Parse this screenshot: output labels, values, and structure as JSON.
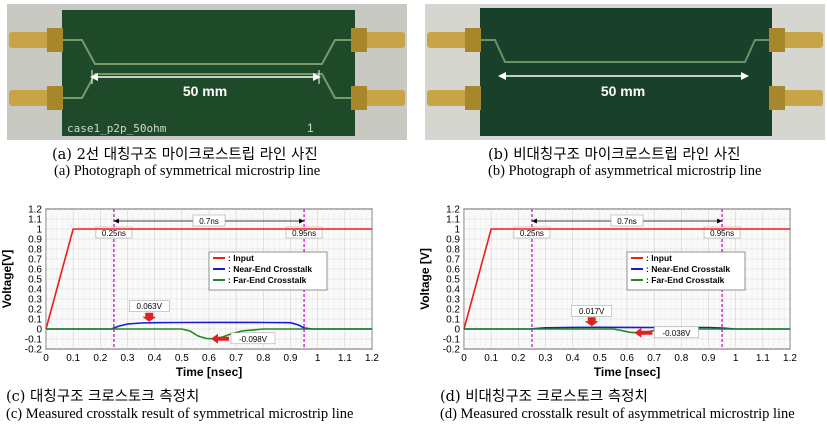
{
  "photo_a": {
    "dimension_label": "50 mm",
    "board_label": "case1_p2p_50ohm",
    "ruler_label": "1"
  },
  "photo_b": {
    "dimension_label": "50 mm"
  },
  "captions": {
    "a_ko": "(a) 2선 대칭구조 마이크로스트립 라인 사진",
    "a_en": "(a) Photograph of symmetrical microstrip line",
    "b_ko": "(b) 비대칭구조 마이크로스트립 라인 사진",
    "b_en": "(b) Photograph of asymmetrical microstrip line",
    "c_ko": "(c) 대칭구조 크로스토크 측정치",
    "c_en": "(c) Measured crosstalk result of symmetrical microstrip line",
    "d_ko": "(d) 비대칭구조 크로스토크 측정치",
    "d_en": "(d) Measured crosstalk result of asymmetrical microstrip line"
  },
  "colors": {
    "input": "#ee1c1c",
    "near": "#1a1adc",
    "far": "#1f8a1f",
    "marker": "#cc22cc",
    "arrow": "#dd2222",
    "board": "#1f4a2a"
  },
  "chart_data": [
    {
      "type": "line",
      "xlabel": "Time [nsec]",
      "ylabel": "Voltage[V]",
      "xlim": [
        0,
        1.2
      ],
      "ylim": [
        -0.2,
        1.2
      ],
      "xticks": [
        "0",
        "0.1",
        "0.2",
        "0.3",
        "0.4",
        "0.5",
        "0.6",
        "0.7",
        "0.8",
        "0.9",
        "1",
        "1.1",
        "1.2"
      ],
      "yticks": [
        "1.2",
        "1.1",
        "1",
        "0.9",
        "0.8",
        "0.7",
        "0.6",
        "0.5",
        "0.4",
        "0.3",
        "0.2",
        "0.1",
        "0",
        "-0.1",
        "-0.2"
      ],
      "grid": true,
      "legend": "right",
      "legend_entries": [
        ": Input",
        ": Near-End Crosstalk",
        ": Far-End Crosstalk"
      ],
      "markers": {
        "t1": 0.25,
        "t2": 0.95,
        "t1_label": "0.25ns",
        "t2_label": "0.95ns",
        "span_label": "0.7ns"
      },
      "annotations": {
        "near_label": "0.063V",
        "near_x": 0.38,
        "near_y": 0.063,
        "far_label": "-0.098V",
        "far_x": 0.6,
        "far_y": -0.098
      },
      "series": [
        {
          "name": ": Input",
          "x": [
            0,
            0.1,
            1.2
          ],
          "y": [
            0,
            1.0,
            1.0
          ]
        },
        {
          "name": ": Near-End Crosstalk",
          "x": [
            0,
            0.24,
            0.27,
            0.3,
            0.35,
            0.4,
            0.5,
            0.6,
            0.7,
            0.8,
            0.9,
            0.93,
            0.95,
            0.98,
            1.2
          ],
          "y": [
            0,
            0,
            0.03,
            0.05,
            0.06,
            0.063,
            0.065,
            0.066,
            0.066,
            0.065,
            0.063,
            0.04,
            0.01,
            0,
            0
          ]
        },
        {
          "name": ": Far-End Crosstalk",
          "x": [
            0,
            0.5,
            0.53,
            0.56,
            0.59,
            0.62,
            0.65,
            0.68,
            0.72,
            0.8,
            1.2
          ],
          "y": [
            0,
            0,
            -0.02,
            -0.07,
            -0.095,
            -0.098,
            -0.08,
            -0.05,
            -0.02,
            0,
            0
          ]
        }
      ]
    },
    {
      "type": "line",
      "xlabel": "Time [nsec]",
      "ylabel": "Voltage [V]",
      "xlim": [
        0,
        1.2
      ],
      "ylim": [
        -0.2,
        1.2
      ],
      "xticks": [
        "0",
        "0.1",
        "0.2",
        "0.3",
        "0.4",
        "0.5",
        "0.6",
        "0.7",
        "0.8",
        "0.9",
        "1",
        "1.1",
        "1.2"
      ],
      "yticks": [
        "1.2",
        "1.1",
        "1",
        "0.9",
        "0.8",
        "0.7",
        "0.6",
        "0.5",
        "0.4",
        "0.3",
        "0.2",
        "0.1",
        "0",
        "-0.1",
        "-0.2"
      ],
      "grid": true,
      "legend": "right",
      "legend_entries": [
        ": Input",
        ": Near-End Crosstalk",
        ": Far-End Crosstalk"
      ],
      "markers": {
        "t1": 0.25,
        "t2": 0.95,
        "t1_label": "0.25ns",
        "t2_label": "0.95ns",
        "span_label": "0.7ns"
      },
      "annotations": {
        "near_label": "0.017V",
        "near_x": 0.47,
        "near_y": 0.017,
        "far_label": "-0.038V",
        "far_x": 0.62,
        "far_y": -0.038
      },
      "series": [
        {
          "name": ": Input",
          "x": [
            0,
            0.1,
            1.2
          ],
          "y": [
            0,
            1.0,
            1.0
          ]
        },
        {
          "name": ": Near-End Crosstalk",
          "x": [
            0,
            0.24,
            0.3,
            0.4,
            0.5,
            0.6,
            0.7,
            0.8,
            0.9,
            0.95,
            1.0,
            1.2
          ],
          "y": [
            0,
            0,
            0.012,
            0.016,
            0.017,
            0.016,
            0.015,
            0.016,
            0.015,
            0.01,
            0,
            0
          ]
        },
        {
          "name": ": Far-End Crosstalk",
          "x": [
            0,
            0.55,
            0.58,
            0.61,
            0.64,
            0.67,
            0.7,
            0.75,
            1.2
          ],
          "y": [
            0,
            0,
            -0.015,
            -0.033,
            -0.038,
            -0.03,
            -0.015,
            0,
            0
          ]
        }
      ]
    }
  ]
}
